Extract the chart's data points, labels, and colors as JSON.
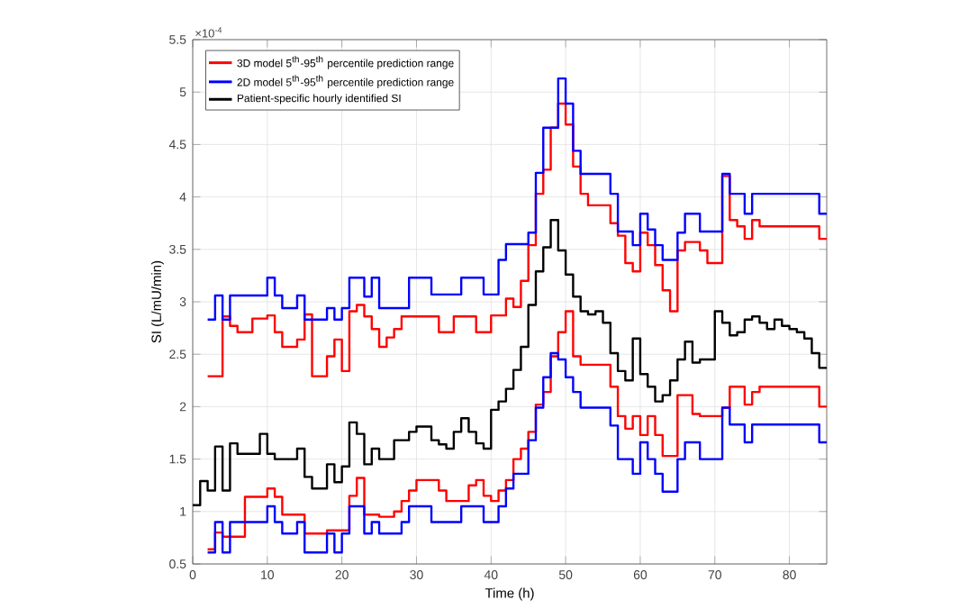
{
  "chart_data": {
    "type": "step",
    "xlabel": "Time (h)",
    "ylabel": "SI (L/mU/min)",
    "annotations": [
      "×10$^{-4}$"
    ],
    "xlim": [
      0,
      85
    ],
    "ylim": [
      0.5,
      5.5
    ],
    "xticks": [
      0,
      10,
      20,
      30,
      40,
      50,
      60,
      70,
      80
    ],
    "yticks": [
      0.5,
      1,
      1.5,
      2,
      2.5,
      3,
      3.5,
      4,
      4.5,
      5,
      5.5
    ],
    "grid": true,
    "legend": "top left",
    "line_style": "solid",
    "marker": "none",
    "series": [
      {
        "name": "3D model 5$^{th}$-95$^{th}$ percentile prediction range",
        "color": "#ff0000",
        "x": [
          2,
          4,
          5,
          6,
          8,
          10,
          11,
          12,
          14,
          15,
          16,
          18,
          19,
          20,
          21,
          22,
          23,
          24,
          25,
          26,
          27,
          28,
          33,
          35,
          38,
          40,
          42,
          43,
          44,
          45,
          46,
          47,
          48,
          49,
          50,
          51,
          52,
          53,
          56,
          57,
          58,
          59,
          60,
          61,
          62,
          63,
          64,
          65,
          66,
          68,
          69,
          71,
          72,
          73,
          74,
          75,
          76,
          84,
          85
        ],
        "values": [
          2.29,
          2.86,
          2.77,
          2.71,
          2.84,
          2.87,
          2.71,
          2.57,
          2.64,
          2.88,
          2.29,
          2.48,
          2.64,
          2.34,
          2.91,
          2.97,
          2.86,
          2.74,
          2.57,
          2.66,
          2.74,
          2.86,
          2.71,
          2.86,
          2.71,
          2.87,
          3.03,
          2.95,
          3.2,
          3.54,
          4.03,
          4.26,
          4.66,
          4.89,
          4.69,
          4.29,
          4.03,
          3.92,
          3.75,
          3.63,
          3.37,
          3.29,
          3.66,
          3.54,
          3.35,
          3.11,
          2.91,
          3.49,
          3.57,
          3.49,
          3.37,
          4.2,
          3.78,
          3.72,
          3.6,
          3.78,
          3.72,
          3.6,
          3.6
        ]
      },
      {
        "color": "#ff0000",
        "x": [
          2,
          3,
          4,
          7,
          10,
          11,
          12,
          15,
          18,
          21,
          22,
          23,
          25,
          27,
          28,
          29,
          30,
          33,
          34,
          35,
          37,
          38,
          39,
          40,
          41,
          42,
          43,
          44,
          45,
          46,
          47,
          48,
          49,
          50,
          51,
          52,
          56,
          57,
          58,
          59,
          60,
          61,
          62,
          63,
          65,
          67,
          68,
          71,
          72,
          74,
          75,
          76,
          84,
          85
        ],
        "values": [
          0.64,
          0.8,
          0.76,
          1.14,
          1.22,
          1.14,
          0.97,
          0.79,
          0.82,
          1.15,
          1.32,
          0.97,
          0.95,
          1.0,
          1.1,
          1.2,
          1.3,
          1.2,
          1.1,
          1.1,
          1.25,
          1.3,
          1.15,
          1.1,
          1.2,
          1.3,
          1.5,
          1.6,
          1.76,
          2.02,
          2.14,
          2.48,
          2.71,
          2.91,
          2.48,
          2.4,
          2.19,
          1.91,
          1.79,
          1.91,
          1.73,
          1.91,
          1.73,
          1.53,
          2.11,
          1.93,
          1.91,
          1.99,
          2.19,
          2.02,
          2.14,
          2.19,
          2.0,
          2.0
        ]
      },
      {
        "name": "2D model 5$^{th}$-95$^{th}$ percentile prediction range",
        "color": "#0000ff",
        "x": [
          2,
          3,
          4,
          5,
          10,
          11,
          12,
          14,
          15,
          18,
          19,
          20,
          21,
          23,
          24,
          25,
          29,
          32,
          36,
          39,
          41,
          42,
          44,
          45,
          46,
          47,
          49,
          50,
          51,
          52,
          56,
          57,
          59,
          60,
          61,
          62,
          63,
          65,
          66,
          68,
          71,
          72,
          74,
          75,
          84,
          85
        ],
        "values": [
          2.83,
          3.06,
          2.83,
          3.06,
          3.23,
          3.06,
          2.94,
          3.06,
          2.83,
          2.94,
          2.83,
          2.94,
          3.23,
          3.05,
          3.23,
          2.94,
          3.23,
          3.07,
          3.23,
          3.07,
          3.4,
          3.55,
          3.55,
          3.66,
          4.23,
          4.66,
          5.13,
          4.89,
          4.44,
          4.22,
          4.03,
          3.67,
          3.54,
          3.84,
          3.69,
          3.54,
          3.4,
          3.66,
          3.84,
          3.67,
          4.22,
          4.03,
          3.84,
          4.03,
          3.84,
          3.84
        ]
      },
      {
        "color": "#0000ff",
        "x": [
          2,
          3,
          4,
          5,
          10,
          11,
          12,
          14,
          15,
          18,
          19,
          20,
          21,
          23,
          24,
          25,
          28,
          29,
          32,
          36,
          39,
          41,
          42,
          43,
          44,
          45,
          46,
          47,
          48,
          49,
          50,
          51,
          52,
          56,
          57,
          59,
          60,
          61,
          62,
          63,
          65,
          66,
          68,
          71,
          72,
          74,
          75,
          84,
          85
        ],
        "values": [
          0.61,
          0.9,
          0.61,
          0.9,
          1.05,
          0.9,
          0.79,
          0.9,
          0.61,
          0.79,
          0.61,
          0.79,
          1.05,
          0.79,
          0.9,
          0.79,
          0.9,
          1.05,
          0.9,
          1.05,
          0.9,
          1.05,
          1.22,
          1.36,
          1.36,
          1.68,
          1.99,
          2.28,
          2.51,
          2.45,
          2.28,
          2.14,
          1.99,
          1.82,
          1.5,
          1.36,
          1.66,
          1.5,
          1.36,
          1.19,
          1.5,
          1.66,
          1.5,
          1.99,
          1.83,
          1.66,
          1.83,
          1.66,
          1.66
        ]
      },
      {
        "name": "Patient-specific hourly identified SI",
        "color": "#000000",
        "x": [
          0,
          1,
          2,
          3,
          4,
          5,
          6,
          9,
          10,
          11,
          14,
          15,
          16,
          18,
          19,
          20,
          21,
          22,
          23,
          24,
          25,
          27,
          29,
          30,
          32,
          33,
          34,
          35,
          36,
          37,
          38,
          39,
          40,
          41,
          42,
          43,
          44,
          45,
          46,
          47,
          48,
          49,
          50,
          51,
          52,
          53,
          54,
          55,
          56,
          57,
          58,
          59,
          60,
          61,
          62,
          63,
          64,
          65,
          66,
          67,
          68,
          70,
          71,
          72,
          73,
          74,
          75,
          76,
          77,
          78,
          79,
          80,
          81,
          82,
          83,
          84,
          85
        ],
        "values": [
          1.06,
          1.29,
          1.2,
          1.62,
          1.2,
          1.65,
          1.55,
          1.74,
          1.55,
          1.5,
          1.6,
          1.33,
          1.22,
          1.45,
          1.28,
          1.43,
          1.85,
          1.74,
          1.45,
          1.6,
          1.5,
          1.68,
          1.76,
          1.81,
          1.68,
          1.64,
          1.6,
          1.76,
          1.89,
          1.76,
          1.65,
          1.6,
          1.97,
          2.05,
          2.17,
          2.35,
          2.57,
          2.97,
          3.29,
          3.52,
          3.78,
          3.49,
          3.26,
          3.05,
          2.91,
          2.88,
          2.91,
          2.8,
          2.51,
          2.34,
          2.25,
          2.65,
          2.31,
          2.19,
          2.05,
          2.11,
          2.25,
          2.45,
          2.62,
          2.42,
          2.45,
          2.91,
          2.8,
          2.68,
          2.71,
          2.83,
          2.86,
          2.8,
          2.74,
          2.83,
          2.77,
          2.74,
          2.71,
          2.65,
          2.51,
          2.37,
          2.37
        ]
      }
    ]
  }
}
